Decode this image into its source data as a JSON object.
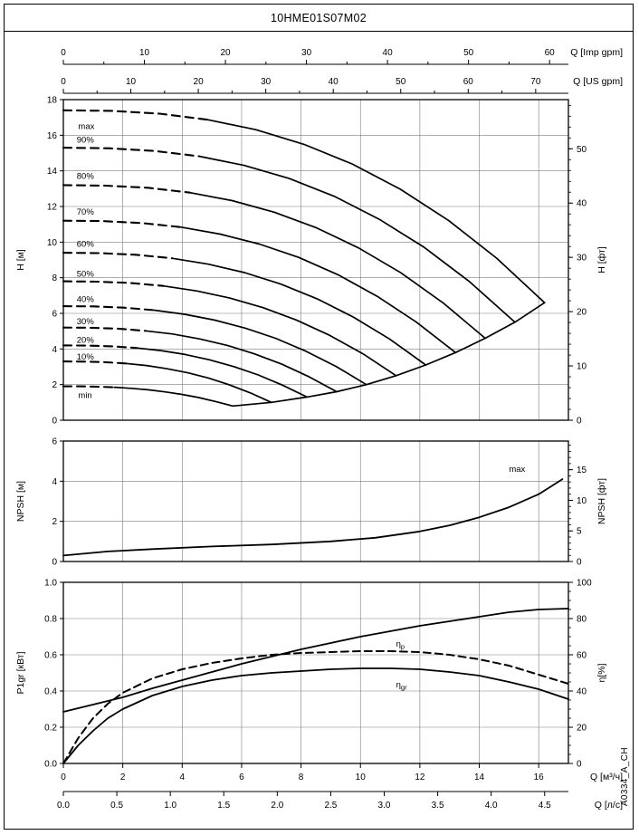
{
  "title": "10HME01S07M02",
  "side_label": "A0334_A_CH",
  "colors": {
    "curve": "#000000",
    "grid": "#7d7d7d",
    "frame": "#000000",
    "bg": "#ffffff"
  },
  "x_axes": {
    "main": {
      "label": "Q [м³/ч]",
      "ticks": [
        0,
        2,
        4,
        6,
        8,
        10,
        12,
        14,
        16
      ],
      "max": 17
    },
    "ls": {
      "label": "Q [л/с]",
      "ticks": [
        "0.0",
        "0.5",
        "1.0",
        "1.5",
        "2.0",
        "2.5",
        "3.0",
        "3.5",
        "4.0",
        "4.5"
      ],
      "m3h_per_unit": 3.6
    },
    "imp": {
      "label": "Q [Imp gpm]",
      "ticks": [
        0,
        10,
        20,
        30,
        40,
        50,
        60
      ],
      "m3h_per_unit": 0.27276
    },
    "us": {
      "label": "Q [US gpm]",
      "ticks": [
        0,
        10,
        20,
        30,
        40,
        50,
        60,
        70
      ],
      "m3h_per_unit": 0.22712
    }
  },
  "chart_data": [
    {
      "type": "line",
      "name": "head",
      "ylabel_left": "H [м]",
      "ylabel_right": "H [фт]",
      "xlim": [
        0,
        17
      ],
      "ylim": [
        0,
        18
      ],
      "yticks": [
        0,
        2,
        4,
        6,
        8,
        10,
        12,
        14,
        16,
        18
      ],
      "yticks_right": [
        0,
        10,
        20,
        30,
        40,
        50
      ],
      "y_right_factor": 0.3048,
      "y_right_minor_step": 2,
      "series": [
        {
          "name": "max",
          "label": "max",
          "label_q": 0.5,
          "label_h": 16.5,
          "dash_until": 5.5,
          "points": [
            [
              0,
              17.4
            ],
            [
              1.62,
              17.37
            ],
            [
              3.24,
              17.21
            ],
            [
              4.86,
              16.87
            ],
            [
              6.48,
              16.31
            ],
            [
              8.1,
              15.49
            ],
            [
              9.72,
              14.39
            ],
            [
              11.34,
              12.97
            ],
            [
              12.96,
              11.22
            ],
            [
              14.58,
              9.1
            ],
            [
              16.2,
              6.6
            ]
          ]
        },
        {
          "name": "p90",
          "label": "90%",
          "label_q": 0.45,
          "label_h": 15.75,
          "dash_until": 5.0,
          "points": [
            [
              0,
              15.3
            ],
            [
              1.52,
              15.27
            ],
            [
              3.04,
              15.12
            ],
            [
              4.56,
              14.82
            ],
            [
              6.08,
              14.31
            ],
            [
              7.6,
              13.57
            ],
            [
              9.12,
              12.57
            ],
            [
              10.64,
              11.28
            ],
            [
              12.16,
              9.69
            ],
            [
              13.68,
              7.77
            ],
            [
              15.2,
              5.5
            ]
          ]
        },
        {
          "name": "p80",
          "label": "80%",
          "label_q": 0.45,
          "label_h": 13.7,
          "dash_until": 4.7,
          "points": [
            [
              0,
              13.2
            ],
            [
              1.42,
              13.17
            ],
            [
              2.84,
              13.05
            ],
            [
              4.26,
              12.78
            ],
            [
              5.68,
              12.33
            ],
            [
              7.1,
              11.68
            ],
            [
              8.52,
              10.8
            ],
            [
              9.94,
              9.67
            ],
            [
              11.36,
              8.28
            ],
            [
              12.78,
              6.59
            ],
            [
              14.2,
              4.6
            ]
          ]
        },
        {
          "name": "p70",
          "label": "70%",
          "label_q": 0.45,
          "label_h": 11.7,
          "dash_until": 4.4,
          "points": [
            [
              0,
              11.2
            ],
            [
              1.32,
              11.18
            ],
            [
              2.64,
              11.07
            ],
            [
              3.96,
              10.84
            ],
            [
              5.28,
              10.45
            ],
            [
              6.6,
              9.89
            ],
            [
              7.92,
              9.14
            ],
            [
              9.24,
              8.17
            ],
            [
              10.56,
              6.96
            ],
            [
              11.88,
              5.51
            ],
            [
              13.2,
              3.8
            ]
          ]
        },
        {
          "name": "p60",
          "label": "60%",
          "label_q": 0.45,
          "label_h": 9.9,
          "dash_until": 4.0,
          "points": [
            [
              0,
              9.4
            ],
            [
              1.22,
              9.38
            ],
            [
              2.44,
              9.29
            ],
            [
              3.66,
              9.09
            ],
            [
              4.88,
              8.76
            ],
            [
              6.1,
              8.29
            ],
            [
              7.32,
              7.64
            ],
            [
              8.54,
              6.82
            ],
            [
              9.76,
              5.79
            ],
            [
              10.98,
              4.56
            ],
            [
              12.2,
              3.1
            ]
          ]
        },
        {
          "name": "p50",
          "label": "50%",
          "label_q": 0.45,
          "label_h": 8.2,
          "dash_until": 3.7,
          "points": [
            [
              0,
              7.8
            ],
            [
              1.12,
              7.78
            ],
            [
              2.24,
              7.71
            ],
            [
              3.36,
              7.54
            ],
            [
              4.48,
              7.26
            ],
            [
              5.6,
              6.86
            ],
            [
              6.72,
              6.32
            ],
            [
              7.84,
              5.63
            ],
            [
              8.96,
              4.77
            ],
            [
              10.08,
              3.73
            ],
            [
              11.2,
              2.5
            ]
          ]
        },
        {
          "name": "p40",
          "label": "40%",
          "label_q": 0.45,
          "label_h": 6.8,
          "dash_until": 3.3,
          "points": [
            [
              0,
              6.4
            ],
            [
              1.02,
              6.39
            ],
            [
              2.04,
              6.32
            ],
            [
              3.06,
              6.18
            ],
            [
              4.08,
              5.95
            ],
            [
              5.1,
              5.62
            ],
            [
              6.12,
              5.17
            ],
            [
              7.14,
              4.6
            ],
            [
              8.16,
              3.88
            ],
            [
              9.18,
              3.02
            ],
            [
              10.2,
              2.0
            ]
          ]
        },
        {
          "name": "p30",
          "label": "30%",
          "label_q": 0.45,
          "label_h": 5.55,
          "dash_until": 3.0,
          "points": [
            [
              0,
              5.2
            ],
            [
              0.92,
              5.19
            ],
            [
              1.84,
              5.14
            ],
            [
              2.76,
              5.02
            ],
            [
              3.68,
              4.84
            ],
            [
              4.6,
              4.56
            ],
            [
              5.52,
              4.2
            ],
            [
              6.44,
              3.72
            ],
            [
              7.36,
              3.14
            ],
            [
              8.28,
              2.43
            ],
            [
              9.2,
              1.6
            ]
          ]
        },
        {
          "name": "p20",
          "label": "20%",
          "label_q": 0.45,
          "label_h": 4.5,
          "dash_until": 2.6,
          "points": [
            [
              0,
              4.2
            ],
            [
              0.82,
              4.19
            ],
            [
              1.64,
              4.15
            ],
            [
              2.46,
              4.06
            ],
            [
              3.28,
              3.91
            ],
            [
              4.1,
              3.69
            ],
            [
              4.92,
              3.39
            ],
            [
              5.74,
              3.01
            ],
            [
              6.56,
              2.54
            ],
            [
              7.38,
              1.97
            ],
            [
              8.2,
              1.3
            ]
          ]
        },
        {
          "name": "p10",
          "label": "10%",
          "label_q": 0.45,
          "label_h": 3.55,
          "dash_until": 2.2,
          "points": [
            [
              0,
              3.3
            ],
            [
              0.7,
              3.29
            ],
            [
              1.4,
              3.26
            ],
            [
              2.1,
              3.19
            ],
            [
              2.8,
              3.07
            ],
            [
              3.5,
              2.89
            ],
            [
              4.2,
              2.66
            ],
            [
              4.9,
              2.36
            ],
            [
              5.6,
              1.98
            ],
            [
              6.3,
              1.53
            ],
            [
              7,
              1.0
            ]
          ]
        },
        {
          "name": "min",
          "label": "min",
          "label_q": 0.5,
          "label_h": 1.4,
          "dash_until": 1.8,
          "points": [
            [
              0,
              1.9
            ],
            [
              0.57,
              1.9
            ],
            [
              1.14,
              1.88
            ],
            [
              1.71,
              1.85
            ],
            [
              2.28,
              1.79
            ],
            [
              2.85,
              1.71
            ],
            [
              3.42,
              1.59
            ],
            [
              3.99,
              1.45
            ],
            [
              4.56,
              1.27
            ],
            [
              5.13,
              1.05
            ],
            [
              5.7,
              0.8
            ]
          ]
        }
      ],
      "boundary": [
        [
          5.7,
          0.8
        ],
        [
          7.0,
          1.0
        ],
        [
          8.2,
          1.3
        ],
        [
          9.2,
          1.6
        ],
        [
          10.2,
          2.0
        ],
        [
          11.2,
          2.5
        ],
        [
          12.2,
          3.1
        ],
        [
          13.2,
          3.8
        ],
        [
          14.2,
          4.6
        ],
        [
          15.2,
          5.5
        ],
        [
          16.2,
          6.6
        ]
      ]
    },
    {
      "type": "line",
      "name": "npsh",
      "ylabel_left": "NPSH [м]",
      "ylabel_right": "NPSH [фт]",
      "xlim": [
        0,
        17
      ],
      "ylim": [
        0,
        6
      ],
      "yticks": [
        0,
        2,
        4,
        6
      ],
      "yticks_right": [
        0,
        5,
        10,
        15
      ],
      "y_right_factor": 0.3048,
      "y_right_minor_step": 1,
      "series": [
        {
          "name": "npsh_max",
          "label": "max",
          "label_q": 15.0,
          "label_h": 4.6,
          "points": [
            [
              0,
              0.3
            ],
            [
              1.5,
              0.5
            ],
            [
              3,
              0.62
            ],
            [
              5,
              0.75
            ],
            [
              7,
              0.85
            ],
            [
              9,
              1.0
            ],
            [
              10.5,
              1.18
            ],
            [
              12,
              1.5
            ],
            [
              13,
              1.8
            ],
            [
              14,
              2.2
            ],
            [
              15,
              2.7
            ],
            [
              16,
              3.35
            ],
            [
              16.8,
              4.1
            ]
          ]
        }
      ]
    },
    {
      "type": "line",
      "name": "power",
      "ylabel_left": "P1gr [кВт]",
      "ylabel_right": "η[%]",
      "xlim": [
        0,
        17
      ],
      "ylim": [
        0,
        1.0
      ],
      "yticks": [
        0,
        0.2,
        0.4,
        0.6,
        0.8,
        1.0
      ],
      "ytick_decimals": 1,
      "yticks_right": [
        0,
        20,
        40,
        60,
        80,
        100
      ],
      "y_right_factor": 0.01,
      "y_right_minor_step": 5,
      "series": [
        {
          "name": "P1gr",
          "points": [
            [
              0,
              0.285
            ],
            [
              1,
              0.325
            ],
            [
              2,
              0.365
            ],
            [
              3,
              0.415
            ],
            [
              4,
              0.46
            ],
            [
              5,
              0.505
            ],
            [
              6,
              0.55
            ],
            [
              7,
              0.59
            ],
            [
              8,
              0.63
            ],
            [
              9,
              0.665
            ],
            [
              10,
              0.7
            ],
            [
              11,
              0.73
            ],
            [
              12,
              0.76
            ],
            [
              13,
              0.785
            ],
            [
              14,
              0.81
            ],
            [
              15,
              0.835
            ],
            [
              16,
              0.85
            ],
            [
              17,
              0.855
            ]
          ]
        },
        {
          "name": "eta_p",
          "label": "η",
          "label_sub": "p",
          "dashed": true,
          "label_q": 11.2,
          "label_h": 0.66,
          "points": [
            [
              0,
              0
            ],
            [
              0.5,
              0.14
            ],
            [
              1,
              0.25
            ],
            [
              1.5,
              0.33
            ],
            [
              2,
              0.39
            ],
            [
              3,
              0.47
            ],
            [
              4,
              0.52
            ],
            [
              5,
              0.555
            ],
            [
              6,
              0.58
            ],
            [
              7,
              0.6
            ],
            [
              8,
              0.61
            ],
            [
              9,
              0.615
            ],
            [
              10,
              0.62
            ],
            [
              11,
              0.62
            ],
            [
              12,
              0.615
            ],
            [
              13,
              0.6
            ],
            [
              14,
              0.575
            ],
            [
              15,
              0.54
            ],
            [
              16,
              0.49
            ],
            [
              17,
              0.44
            ]
          ]
        },
        {
          "name": "eta_gr",
          "label": "η",
          "label_sub": "gr",
          "label_q": 11.2,
          "label_h": 0.435,
          "points": [
            [
              0,
              0
            ],
            [
              0.5,
              0.1
            ],
            [
              1,
              0.18
            ],
            [
              1.5,
              0.25
            ],
            [
              2,
              0.3
            ],
            [
              3,
              0.375
            ],
            [
              4,
              0.425
            ],
            [
              5,
              0.46
            ],
            [
              6,
              0.485
            ],
            [
              7,
              0.5
            ],
            [
              8,
              0.51
            ],
            [
              9,
              0.52
            ],
            [
              10,
              0.525
            ],
            [
              11,
              0.525
            ],
            [
              12,
              0.52
            ],
            [
              13,
              0.505
            ],
            [
              14,
              0.485
            ],
            [
              15,
              0.45
            ],
            [
              16,
              0.41
            ],
            [
              17,
              0.355
            ]
          ]
        }
      ]
    }
  ]
}
